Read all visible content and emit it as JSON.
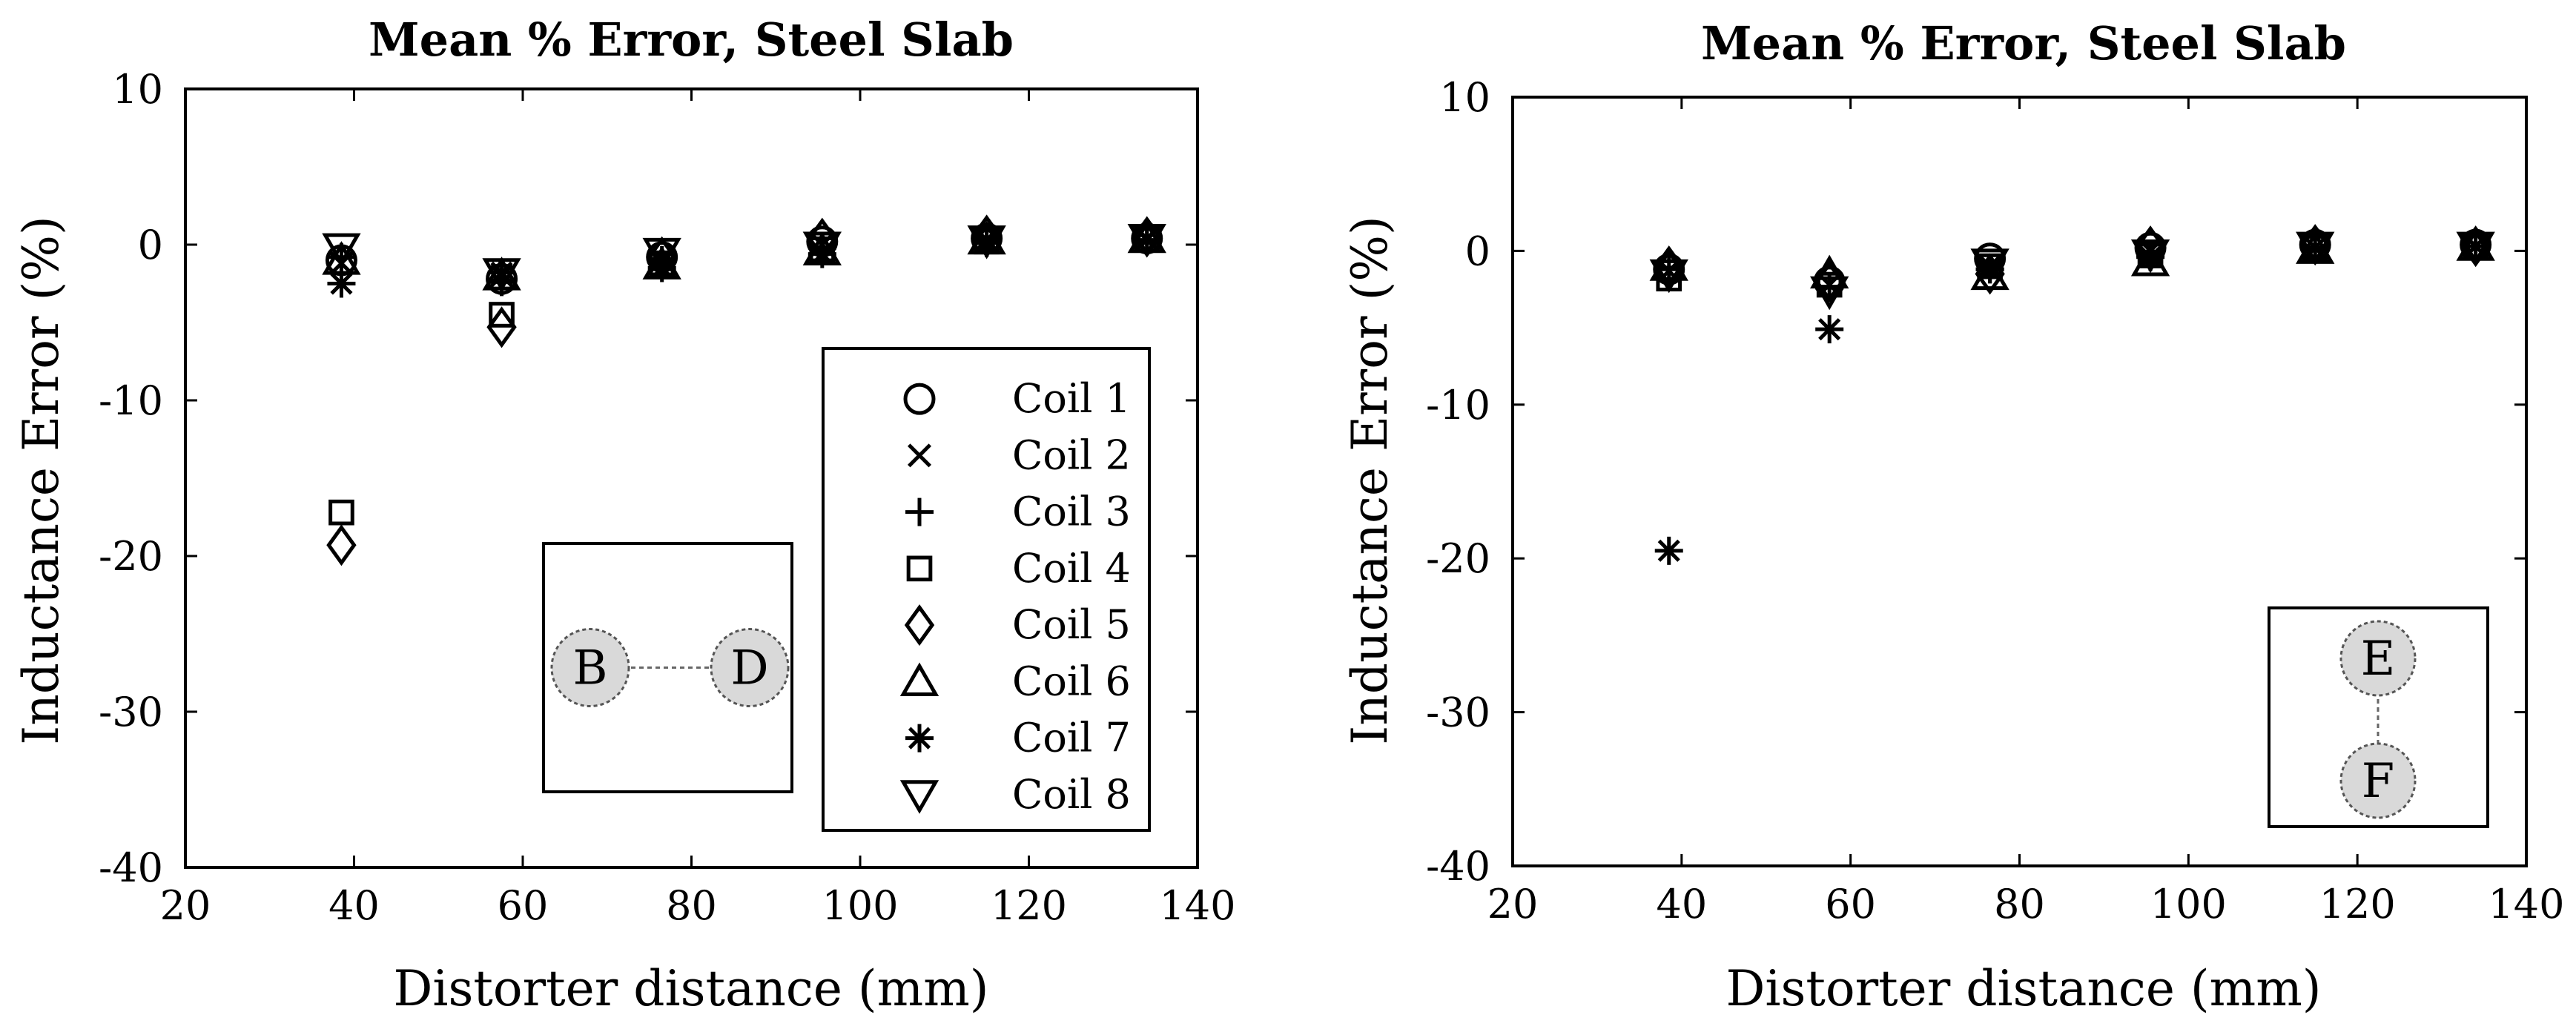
{
  "chart_data": [
    {
      "type": "scatter",
      "title": "Mean % Error, Steel Slab",
      "xlabel": "Distorter distance (mm)",
      "ylabel": "Inductance Error (%)",
      "xlim": [
        20,
        140
      ],
      "ylim": [
        -40,
        10
      ],
      "xticks": [
        "20",
        "40",
        "60",
        "80",
        "100",
        "120",
        "140"
      ],
      "yticks": [
        "10",
        "0",
        "-10",
        "-20",
        "-30",
        "-40"
      ],
      "x": [
        38.5,
        57.5,
        76.5,
        95.5,
        115,
        134
      ],
      "series": [
        {
          "name": "Coil 1",
          "marker": "circle",
          "values": [
            -1.0,
            -2.2,
            -0.8,
            0.2,
            0.4,
            0.4
          ]
        },
        {
          "name": "Coil 2",
          "marker": "x",
          "values": [
            -1.2,
            -2.0,
            -1.0,
            0.0,
            0.3,
            0.4
          ]
        },
        {
          "name": "Coil 3",
          "marker": "plus",
          "values": [
            -0.8,
            -2.4,
            -1.0,
            -0.2,
            0.3,
            0.3
          ]
        },
        {
          "name": "Coil 4",
          "marker": "square",
          "values": [
            -17.2,
            -4.5,
            -1.2,
            -0.3,
            0.2,
            0.3
          ]
        },
        {
          "name": "Coil 5",
          "marker": "diamond",
          "values": [
            -19.3,
            -5.3,
            -0.8,
            0.4,
            0.6,
            0.5
          ]
        },
        {
          "name": "Coil 6",
          "marker": "triangle-up",
          "values": [
            -1.0,
            -2.0,
            -1.3,
            -0.4,
            0.3,
            0.4
          ]
        },
        {
          "name": "Coil 7",
          "marker": "asterisk",
          "values": [
            -2.5,
            -1.8,
            -1.5,
            -0.6,
            0.1,
            0.3
          ]
        },
        {
          "name": "Coil 8",
          "marker": "triangle-down",
          "values": [
            -0.2,
            -1.8,
            -0.5,
            -0.1,
            0.3,
            0.4
          ]
        }
      ],
      "legend": {
        "placement": "inside-right",
        "entries": [
          "Coil 1",
          "Coil 2",
          "Coil 3",
          "Coil 4",
          "Coil 5",
          "Coil 6",
          "Coil 7",
          "Coil 8"
        ]
      },
      "inset": {
        "nodes": [
          "B",
          "D"
        ],
        "orientation": "horizontal"
      }
    },
    {
      "type": "scatter",
      "title": "Mean % Error, Steel Slab",
      "xlabel": "Distorter distance (mm)",
      "ylabel": "Inductance Error (%)",
      "xlim": [
        20,
        140
      ],
      "ylim": [
        -40,
        10
      ],
      "xticks": [
        "20",
        "40",
        "60",
        "80",
        "100",
        "120",
        "140"
      ],
      "yticks": [
        "10",
        "0",
        "-10",
        "-20",
        "-30",
        "-40"
      ],
      "x": [
        38.5,
        57.5,
        76.5,
        95.5,
        115,
        134
      ],
      "series": [
        {
          "name": "Coil 1",
          "marker": "circle",
          "values": [
            -1.2,
            -2.0,
            -0.5,
            0.2,
            0.4,
            0.4
          ]
        },
        {
          "name": "Coil 2",
          "marker": "x",
          "values": [
            -1.3,
            -2.2,
            -1.0,
            0.0,
            0.2,
            0.3
          ]
        },
        {
          "name": "Coil 3",
          "marker": "plus",
          "values": [
            -1.2,
            -2.4,
            -1.2,
            -0.3,
            0.1,
            0.3
          ]
        },
        {
          "name": "Coil 4",
          "marker": "square",
          "values": [
            -1.8,
            -2.2,
            -1.0,
            -0.3,
            0.2,
            0.3
          ]
        },
        {
          "name": "Coil 5",
          "marker": "diamond",
          "values": [
            -1.0,
            -2.0,
            -1.5,
            0.3,
            0.4,
            0.3
          ]
        },
        {
          "name": "Coil 6",
          "marker": "triangle-up",
          "values": [
            -1.0,
            -1.5,
            -1.6,
            -0.7,
            0.1,
            0.3
          ]
        },
        {
          "name": "Coil 7",
          "marker": "asterisk",
          "values": [
            -19.5,
            -5.1,
            -1.2,
            -0.4,
            0.2,
            0.3
          ]
        },
        {
          "name": "Coil 8",
          "marker": "triangle-down",
          "values": [
            -1.5,
            -2.6,
            -0.8,
            -0.2,
            0.3,
            0.3
          ]
        }
      ],
      "inset": {
        "nodes": [
          "E",
          "F"
        ],
        "orientation": "vertical"
      }
    }
  ]
}
